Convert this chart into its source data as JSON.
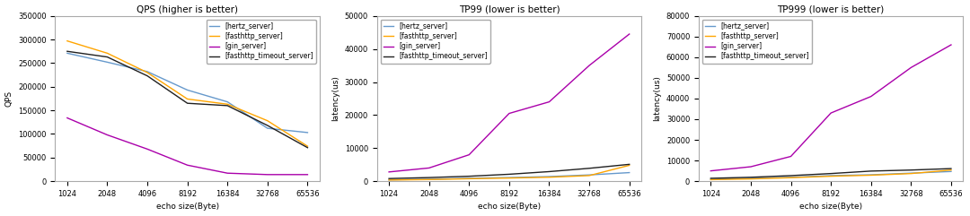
{
  "x": [
    1024,
    2048,
    4096,
    8192,
    16384,
    32768,
    65536
  ],
  "titles": [
    "QPS (higher is better)",
    "TP99 (lower is better)",
    "TP999 (lower is better)"
  ],
  "xlabel": "echo size(Byte)",
  "ylabels": [
    "QPS",
    "latency(us)",
    "latency(us)"
  ],
  "legend_labels": [
    "[hertz_server]",
    "[fasthttp_server]",
    "[gin_server]",
    "[fasthttp_timeout_server]"
  ],
  "colors": [
    "#6699CC",
    "#FFA500",
    "#AA00AA",
    "#202020"
  ],
  "qps": {
    "hertz": [
      271000,
      252000,
      232000,
      193000,
      168000,
      112000,
      103000
    ],
    "fasthttp": [
      297000,
      271000,
      230000,
      174000,
      163000,
      128000,
      74000
    ],
    "gin": [
      134000,
      98000,
      68000,
      34000,
      17000,
      14000,
      14000
    ],
    "fasthttp_timeout": [
      275000,
      263000,
      223000,
      165000,
      160000,
      118000,
      71000
    ]
  },
  "tp99": {
    "hertz": [
      400,
      600,
      900,
      1100,
      1400,
      1900,
      2600
    ],
    "fasthttp": [
      350,
      500,
      750,
      950,
      1200,
      1700,
      4800
    ],
    "gin": [
      2800,
      4000,
      8000,
      20500,
      24000,
      35000,
      44500
    ],
    "fasthttp_timeout": [
      800,
      1100,
      1500,
      2100,
      2900,
      3900,
      5100
    ]
  },
  "tp999": {
    "hertz": [
      900,
      1400,
      1900,
      2700,
      3100,
      3900,
      4700
    ],
    "fasthttp": [
      750,
      1100,
      1700,
      2400,
      2900,
      3700,
      5400
    ],
    "gin": [
      5000,
      7000,
      12000,
      33000,
      41000,
      55000,
      66000
    ],
    "fasthttp_timeout": [
      1400,
      1900,
      2700,
      3700,
      4900,
      5400,
      6100
    ]
  },
  "qps_ylim": [
    0,
    350000
  ],
  "tp99_ylim": [
    0,
    50000
  ],
  "tp999_ylim": [
    0,
    80000
  ],
  "figsize": [
    10.8,
    2.41
  ],
  "dpi": 100
}
